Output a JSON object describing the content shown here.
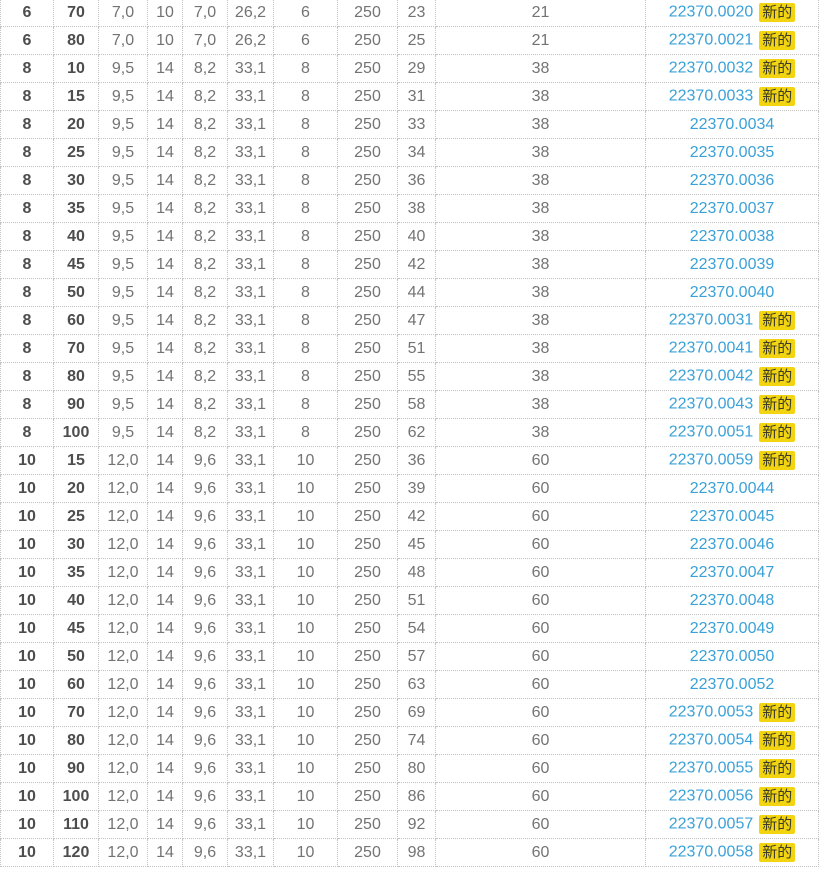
{
  "colors": {
    "link": "#3aa1d8",
    "badge_bg": "#f2d411",
    "badge_text": "#3c3c28",
    "border": "#c2c2c2",
    "cell_text": "#737373",
    "bold_cell_text": "#4d4d4d"
  },
  "table": {
    "new_badge_label": "新的",
    "rows": [
      {
        "values": [
          "6",
          "70",
          "7,0",
          "10",
          "7,0",
          "26,2",
          "6",
          "250",
          "23",
          "21"
        ],
        "part_number": "22370.0020",
        "is_new": true
      },
      {
        "values": [
          "6",
          "80",
          "7,0",
          "10",
          "7,0",
          "26,2",
          "6",
          "250",
          "25",
          "21"
        ],
        "part_number": "22370.0021",
        "is_new": true
      },
      {
        "values": [
          "8",
          "10",
          "9,5",
          "14",
          "8,2",
          "33,1",
          "8",
          "250",
          "29",
          "38"
        ],
        "part_number": "22370.0032",
        "is_new": true
      },
      {
        "values": [
          "8",
          "15",
          "9,5",
          "14",
          "8,2",
          "33,1",
          "8",
          "250",
          "31",
          "38"
        ],
        "part_number": "22370.0033",
        "is_new": true
      },
      {
        "values": [
          "8",
          "20",
          "9,5",
          "14",
          "8,2",
          "33,1",
          "8",
          "250",
          "33",
          "38"
        ],
        "part_number": "22370.0034",
        "is_new": false
      },
      {
        "values": [
          "8",
          "25",
          "9,5",
          "14",
          "8,2",
          "33,1",
          "8",
          "250",
          "34",
          "38"
        ],
        "part_number": "22370.0035",
        "is_new": false
      },
      {
        "values": [
          "8",
          "30",
          "9,5",
          "14",
          "8,2",
          "33,1",
          "8",
          "250",
          "36",
          "38"
        ],
        "part_number": "22370.0036",
        "is_new": false
      },
      {
        "values": [
          "8",
          "35",
          "9,5",
          "14",
          "8,2",
          "33,1",
          "8",
          "250",
          "38",
          "38"
        ],
        "part_number": "22370.0037",
        "is_new": false
      },
      {
        "values": [
          "8",
          "40",
          "9,5",
          "14",
          "8,2",
          "33,1",
          "8",
          "250",
          "40",
          "38"
        ],
        "part_number": "22370.0038",
        "is_new": false
      },
      {
        "values": [
          "8",
          "45",
          "9,5",
          "14",
          "8,2",
          "33,1",
          "8",
          "250",
          "42",
          "38"
        ],
        "part_number": "22370.0039",
        "is_new": false
      },
      {
        "values": [
          "8",
          "50",
          "9,5",
          "14",
          "8,2",
          "33,1",
          "8",
          "250",
          "44",
          "38"
        ],
        "part_number": "22370.0040",
        "is_new": false
      },
      {
        "values": [
          "8",
          "60",
          "9,5",
          "14",
          "8,2",
          "33,1",
          "8",
          "250",
          "47",
          "38"
        ],
        "part_number": "22370.0031",
        "is_new": true
      },
      {
        "values": [
          "8",
          "70",
          "9,5",
          "14",
          "8,2",
          "33,1",
          "8",
          "250",
          "51",
          "38"
        ],
        "part_number": "22370.0041",
        "is_new": true
      },
      {
        "values": [
          "8",
          "80",
          "9,5",
          "14",
          "8,2",
          "33,1",
          "8",
          "250",
          "55",
          "38"
        ],
        "part_number": "22370.0042",
        "is_new": true
      },
      {
        "values": [
          "8",
          "90",
          "9,5",
          "14",
          "8,2",
          "33,1",
          "8",
          "250",
          "58",
          "38"
        ],
        "part_number": "22370.0043",
        "is_new": true
      },
      {
        "values": [
          "8",
          "100",
          "9,5",
          "14",
          "8,2",
          "33,1",
          "8",
          "250",
          "62",
          "38"
        ],
        "part_number": "22370.0051",
        "is_new": true
      },
      {
        "values": [
          "10",
          "15",
          "12,0",
          "14",
          "9,6",
          "33,1",
          "10",
          "250",
          "36",
          "60"
        ],
        "part_number": "22370.0059",
        "is_new": true
      },
      {
        "values": [
          "10",
          "20",
          "12,0",
          "14",
          "9,6",
          "33,1",
          "10",
          "250",
          "39",
          "60"
        ],
        "part_number": "22370.0044",
        "is_new": false
      },
      {
        "values": [
          "10",
          "25",
          "12,0",
          "14",
          "9,6",
          "33,1",
          "10",
          "250",
          "42",
          "60"
        ],
        "part_number": "22370.0045",
        "is_new": false
      },
      {
        "values": [
          "10",
          "30",
          "12,0",
          "14",
          "9,6",
          "33,1",
          "10",
          "250",
          "45",
          "60"
        ],
        "part_number": "22370.0046",
        "is_new": false
      },
      {
        "values": [
          "10",
          "35",
          "12,0",
          "14",
          "9,6",
          "33,1",
          "10",
          "250",
          "48",
          "60"
        ],
        "part_number": "22370.0047",
        "is_new": false
      },
      {
        "values": [
          "10",
          "40",
          "12,0",
          "14",
          "9,6",
          "33,1",
          "10",
          "250",
          "51",
          "60"
        ],
        "part_number": "22370.0048",
        "is_new": false
      },
      {
        "values": [
          "10",
          "45",
          "12,0",
          "14",
          "9,6",
          "33,1",
          "10",
          "250",
          "54",
          "60"
        ],
        "part_number": "22370.0049",
        "is_new": false
      },
      {
        "values": [
          "10",
          "50",
          "12,0",
          "14",
          "9,6",
          "33,1",
          "10",
          "250",
          "57",
          "60"
        ],
        "part_number": "22370.0050",
        "is_new": false
      },
      {
        "values": [
          "10",
          "60",
          "12,0",
          "14",
          "9,6",
          "33,1",
          "10",
          "250",
          "63",
          "60"
        ],
        "part_number": "22370.0052",
        "is_new": false
      },
      {
        "values": [
          "10",
          "70",
          "12,0",
          "14",
          "9,6",
          "33,1",
          "10",
          "250",
          "69",
          "60"
        ],
        "part_number": "22370.0053",
        "is_new": true
      },
      {
        "values": [
          "10",
          "80",
          "12,0",
          "14",
          "9,6",
          "33,1",
          "10",
          "250",
          "74",
          "60"
        ],
        "part_number": "22370.0054",
        "is_new": true
      },
      {
        "values": [
          "10",
          "90",
          "12,0",
          "14",
          "9,6",
          "33,1",
          "10",
          "250",
          "80",
          "60"
        ],
        "part_number": "22370.0055",
        "is_new": true
      },
      {
        "values": [
          "10",
          "100",
          "12,0",
          "14",
          "9,6",
          "33,1",
          "10",
          "250",
          "86",
          "60"
        ],
        "part_number": "22370.0056",
        "is_new": true
      },
      {
        "values": [
          "10",
          "110",
          "12,0",
          "14",
          "9,6",
          "33,1",
          "10",
          "250",
          "92",
          "60"
        ],
        "part_number": "22370.0057",
        "is_new": true
      },
      {
        "values": [
          "10",
          "120",
          "12,0",
          "14",
          "9,6",
          "33,1",
          "10",
          "250",
          "98",
          "60"
        ],
        "part_number": "22370.0058",
        "is_new": true
      }
    ]
  }
}
